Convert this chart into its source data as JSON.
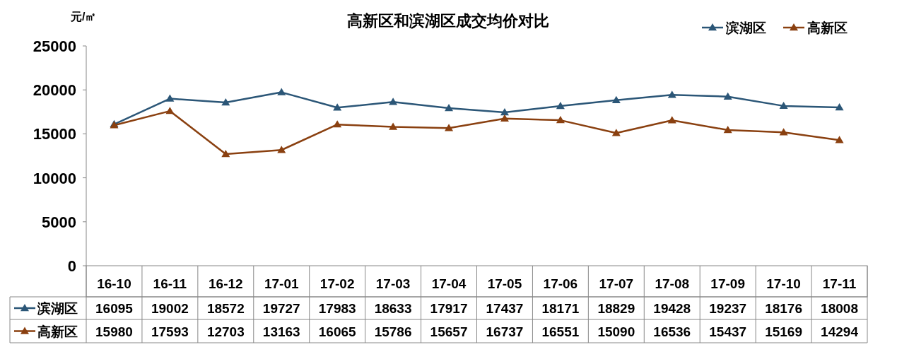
{
  "chart_data": {
    "type": "line",
    "title": "高新区和滨湖区成交均价对比",
    "ylabel": "元/㎡",
    "categories": [
      "16-10",
      "16-11",
      "16-12",
      "17-01",
      "17-02",
      "17-03",
      "17-04",
      "17-05",
      "17-06",
      "17-07",
      "17-08",
      "17-09",
      "17-10",
      "17-11"
    ],
    "series": [
      {
        "name": "滨湖区",
        "color": "#2b5677",
        "values": [
          16095,
          19002,
          18572,
          19727,
          17983,
          18633,
          17917,
          17437,
          18171,
          18829,
          19428,
          19237,
          18176,
          18008
        ]
      },
      {
        "name": "高新区",
        "color": "#8a4010",
        "values": [
          15980,
          17593,
          12703,
          13163,
          16065,
          15786,
          15657,
          16737,
          16551,
          15090,
          16536,
          15437,
          15169,
          14294
        ]
      }
    ],
    "ylim": [
      0,
      25000
    ],
    "yticks": [
      0,
      5000,
      10000,
      15000,
      20000,
      25000
    ],
    "legend": "top right",
    "marker": "triangle",
    "line_style": "solid",
    "grid": false,
    "data_labels": true
  }
}
